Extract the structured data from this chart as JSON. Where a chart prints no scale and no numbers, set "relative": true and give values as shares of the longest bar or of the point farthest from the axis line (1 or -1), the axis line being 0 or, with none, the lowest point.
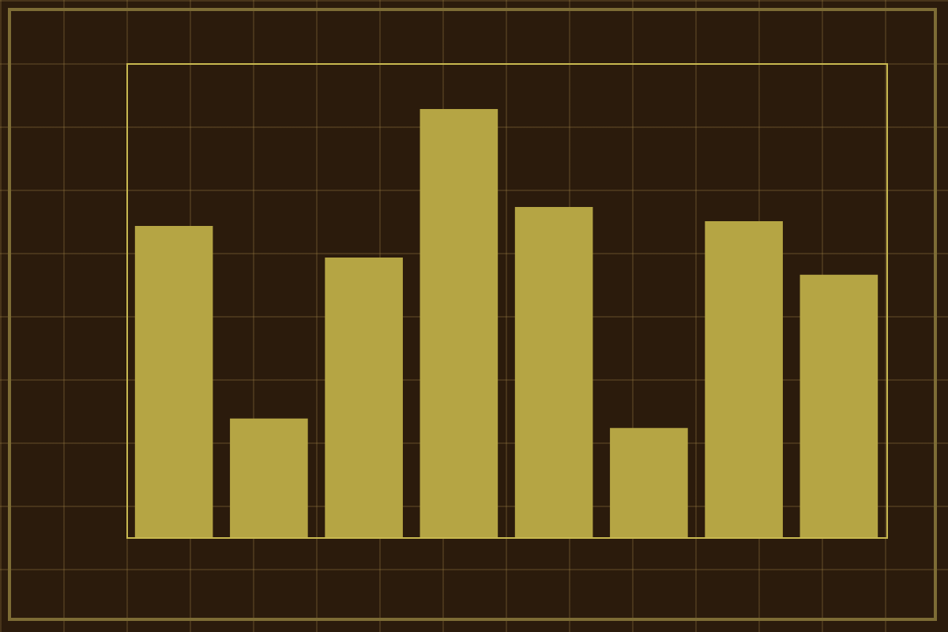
{
  "chart_data": {
    "type": "bar",
    "relative": true,
    "categories": [
      null,
      null,
      null,
      null,
      null,
      null,
      null,
      null
    ],
    "values": [
      0.727,
      0.277,
      0.653,
      1,
      0.771,
      0.255,
      0.738,
      0.613
    ],
    "color": "#b5a544"
  }
}
